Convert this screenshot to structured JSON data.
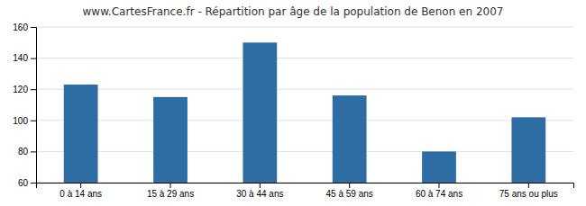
{
  "chart_data": {
    "type": "bar",
    "title": "www.CartesFrance.fr - Répartition par âge de la population de Benon en 2007",
    "categories": [
      "0 à 14 ans",
      "15 à 29 ans",
      "30 à 44 ans",
      "45 à 59 ans",
      "60 à 74 ans",
      "75 ans ou plus"
    ],
    "values": [
      123,
      115,
      150,
      116,
      80,
      102
    ],
    "color": "#2e6da4",
    "ylim": [
      60,
      160
    ],
    "yticks": [
      60,
      80,
      100,
      120,
      140,
      160
    ],
    "grid": true
  }
}
